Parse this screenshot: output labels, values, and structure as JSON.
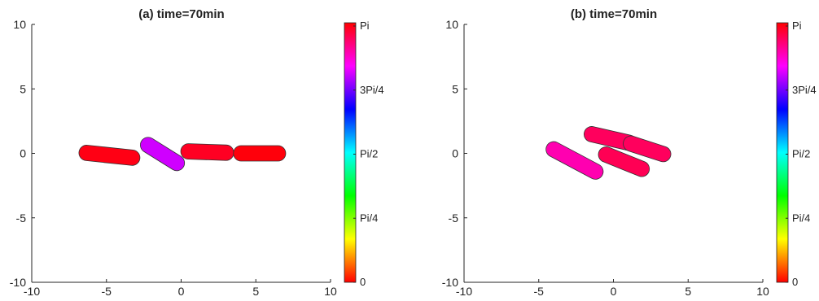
{
  "chart_data": [
    {
      "type": "scatter",
      "title": "(a) time=70min",
      "xlim": [
        -10,
        10
      ],
      "ylim": [
        -10,
        10
      ],
      "x_ticks": [
        "-10",
        "-5",
        "0",
        "5",
        "10"
      ],
      "y_ticks": [
        "-10",
        "-5",
        "0",
        "5",
        "10"
      ],
      "grid": false,
      "colorbar": {
        "ticks": [
          "0",
          "Pi/4",
          "Pi/2",
          "3Pi/4",
          "Pi"
        ],
        "range": [
          0,
          3.14159
        ]
      },
      "cells": [
        {
          "x": -4.8,
          "y": -0.15,
          "angle_deg": -6,
          "length": 4.1,
          "width": 1.2,
          "color_value": 3.1
        },
        {
          "x": -1.25,
          "y": -0.05,
          "angle_deg": -32,
          "length": 3.3,
          "width": 1.2,
          "color_value": 2.52
        },
        {
          "x": 1.75,
          "y": 0.1,
          "angle_deg": -2,
          "length": 3.55,
          "width": 1.2,
          "color_value": 3.07
        },
        {
          "x": 5.25,
          "y": 0.0,
          "angle_deg": 0,
          "length": 3.5,
          "width": 1.2,
          "color_value": 3.12
        }
      ]
    },
    {
      "type": "scatter",
      "title": "(b) time=70min",
      "xlim": [
        -10,
        10
      ],
      "ylim": [
        -10,
        10
      ],
      "x_ticks": [
        "-10",
        "-5",
        "0",
        "5",
        "10"
      ],
      "y_ticks": [
        "-10",
        "-5",
        "0",
        "5",
        "10"
      ],
      "grid": false,
      "colorbar": {
        "ticks": [
          "0",
          "Pi/4",
          "Pi/2",
          "3Pi/4",
          "Pi"
        ],
        "range": [
          0,
          3.14159
        ]
      },
      "cells": [
        {
          "x": -0.2,
          "y": 1.15,
          "angle_deg": -13,
          "length": 3.6,
          "width": 1.2,
          "color_value": 2.95
        },
        {
          "x": 2.25,
          "y": 0.35,
          "angle_deg": -18,
          "length": 3.3,
          "width": 1.2,
          "color_value": 2.95
        },
        {
          "x": -2.6,
          "y": -0.55,
          "angle_deg": -28,
          "length": 4.2,
          "width": 1.2,
          "color_value": 2.78
        },
        {
          "x": 0.7,
          "y": -0.65,
          "angle_deg": -22,
          "length": 3.6,
          "width": 1.2,
          "color_value": 2.97
        }
      ]
    }
  ]
}
